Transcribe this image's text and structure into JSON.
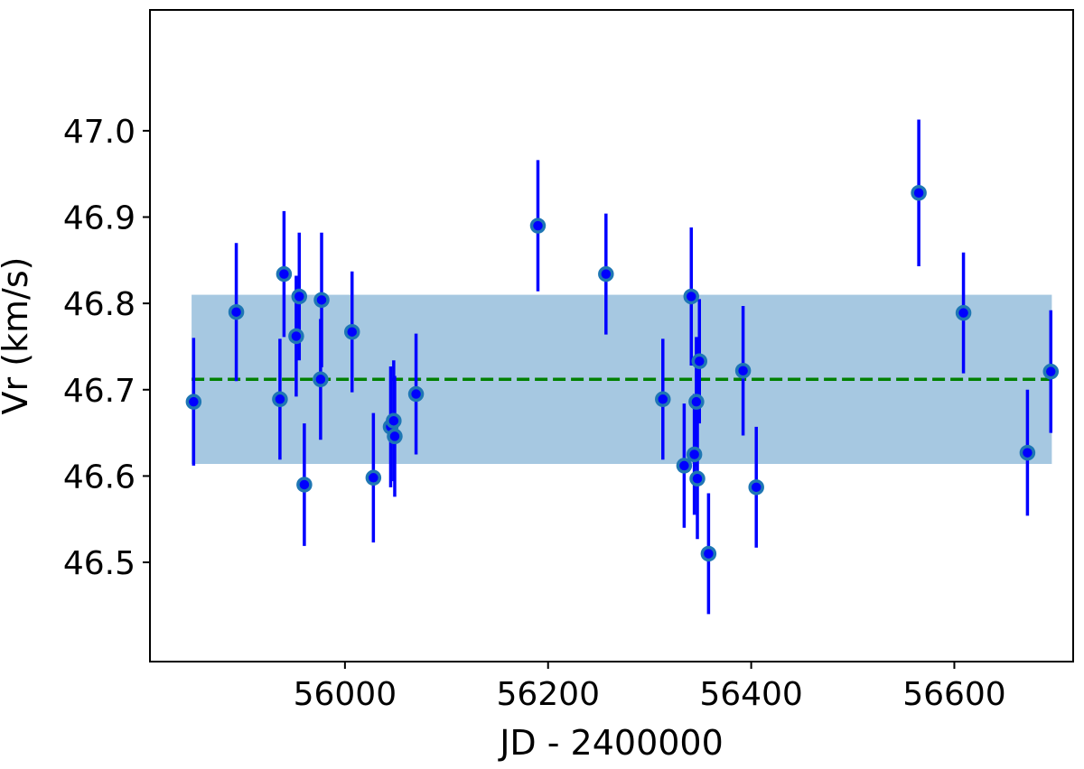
{
  "chart_data": {
    "type": "scatter",
    "title": "",
    "xlabel": "JD - 2400000",
    "ylabel": "Vr (km/s)",
    "xlim": [
      55808,
      56717
    ],
    "ylim": [
      46.385,
      47.14
    ],
    "x_ticks": [
      56000,
      56200,
      56400,
      56600
    ],
    "y_ticks": [
      46.5,
      46.6,
      46.7,
      46.8,
      46.9,
      47.0
    ],
    "y_tick_labels": [
      "46.5",
      "46.6",
      "46.7",
      "46.8",
      "46.9",
      "47.0"
    ],
    "grid": false,
    "legend": "none",
    "mean_line": {
      "value": 46.712,
      "x_range": [
        55849,
        56696
      ],
      "color": "#008000",
      "style": "dashed"
    },
    "band": {
      "y_range": [
        46.614,
        46.81
      ],
      "x_range": [
        55849,
        56696
      ],
      "color": "#a6c8e1"
    },
    "point_color": "#0000ff",
    "point_edge_color": "#1f77b4",
    "errorbar_color": "#0000ff",
    "points": [
      {
        "x": 55851,
        "y": 46.686,
        "err": 0.074
      },
      {
        "x": 55893,
        "y": 46.79,
        "err": 0.08
      },
      {
        "x": 55936,
        "y": 46.689,
        "err": 0.07
      },
      {
        "x": 55940,
        "y": 46.834,
        "err": 0.073
      },
      {
        "x": 55952,
        "y": 46.762,
        "err": 0.07
      },
      {
        "x": 55955,
        "y": 46.808,
        "err": 0.074
      },
      {
        "x": 55960,
        "y": 46.59,
        "err": 0.071
      },
      {
        "x": 55976,
        "y": 46.712,
        "err": 0.07
      },
      {
        "x": 55977,
        "y": 46.804,
        "err": 0.078
      },
      {
        "x": 56007,
        "y": 46.767,
        "err": 0.07
      },
      {
        "x": 56028,
        "y": 46.598,
        "err": 0.075
      },
      {
        "x": 56045,
        "y": 46.657,
        "err": 0.07
      },
      {
        "x": 56048,
        "y": 46.664,
        "err": 0.07
      },
      {
        "x": 56049,
        "y": 46.646,
        "err": 0.07
      },
      {
        "x": 56070,
        "y": 46.695,
        "err": 0.07
      },
      {
        "x": 56190,
        "y": 46.89,
        "err": 0.076
      },
      {
        "x": 56257,
        "y": 46.834,
        "err": 0.07
      },
      {
        "x": 56313,
        "y": 46.689,
        "err": 0.07
      },
      {
        "x": 56334,
        "y": 46.612,
        "err": 0.072
      },
      {
        "x": 56341,
        "y": 46.808,
        "err": 0.08
      },
      {
        "x": 56344,
        "y": 46.625,
        "err": 0.07
      },
      {
        "x": 56346,
        "y": 46.686,
        "err": 0.075
      },
      {
        "x": 56347,
        "y": 46.597,
        "err": 0.07
      },
      {
        "x": 56349,
        "y": 46.733,
        "err": 0.072
      },
      {
        "x": 56358,
        "y": 46.51,
        "err": 0.07
      },
      {
        "x": 56392,
        "y": 46.722,
        "err": 0.075
      },
      {
        "x": 56405,
        "y": 46.587,
        "err": 0.07
      },
      {
        "x": 56565,
        "y": 46.928,
        "err": 0.085
      },
      {
        "x": 56609,
        "y": 46.789,
        "err": 0.07
      },
      {
        "x": 56672,
        "y": 46.627,
        "err": 0.073
      },
      {
        "x": 56695,
        "y": 46.721,
        "err": 0.071
      }
    ]
  }
}
